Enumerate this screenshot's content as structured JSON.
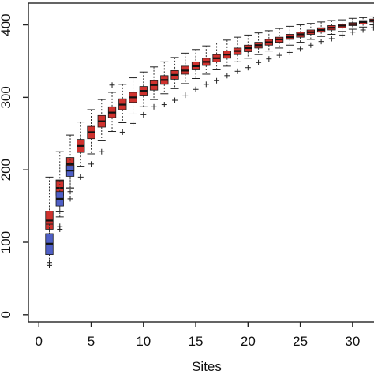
{
  "chart_data": {
    "type": "box",
    "title": "",
    "xlabel": "Sites",
    "ylabel": "",
    "xlim": [
      -1,
      32.5
    ],
    "ylim": [
      -10,
      430
    ],
    "x_ticks": [
      0,
      5,
      10,
      15,
      20,
      25,
      30
    ],
    "x_tick_labels": [
      "0",
      "5",
      "10",
      "15",
      "20",
      "25",
      "30"
    ],
    "y_ticks": [
      0,
      100,
      200,
      300,
      400
    ],
    "y_tick_labels": [
      "0",
      "100",
      "200",
      "300",
      "400"
    ],
    "grid": false,
    "legend": "none",
    "series": [
      {
        "color": "#d0322e",
        "boxes": [
          {
            "x": 1,
            "q1": 118,
            "median": 130,
            "q3": 143,
            "whisker_low": 95,
            "whisker_high": 190,
            "outliers": [
              72
            ]
          },
          {
            "x": 2,
            "q1": 165,
            "median": 175,
            "q3": 186,
            "whisker_low": 142,
            "whisker_high": 225,
            "outliers": [
              122
            ]
          },
          {
            "x": 3,
            "q1": 198,
            "median": 208,
            "q3": 217,
            "whisker_low": 175,
            "whisker_high": 248,
            "outliers": [
              160
            ]
          },
          {
            "x": 4,
            "q1": 224,
            "median": 233,
            "q3": 242,
            "whisker_low": 205,
            "whisker_high": 266,
            "outliers": [
              190
            ]
          },
          {
            "x": 5,
            "q1": 243,
            "median": 252,
            "q3": 260,
            "whisker_low": 222,
            "whisker_high": 283,
            "outliers": [
              208
            ]
          },
          {
            "x": 6,
            "q1": 259,
            "median": 267,
            "q3": 275,
            "whisker_low": 240,
            "whisker_high": 297,
            "outliers": [
              225
            ]
          },
          {
            "x": 7,
            "q1": 272,
            "median": 279,
            "q3": 287,
            "whisker_low": 253,
            "whisker_high": 307,
            "outliers": [
              317
            ]
          },
          {
            "x": 8,
            "q1": 283,
            "median": 290,
            "q3": 298,
            "whisker_low": 265,
            "whisker_high": 318,
            "outliers": [
              252
            ]
          },
          {
            "x": 9,
            "q1": 293,
            "median": 300,
            "q3": 307,
            "whisker_low": 277,
            "whisker_high": 327,
            "outliers": [
              264
            ]
          },
          {
            "x": 10,
            "q1": 302,
            "median": 309,
            "q3": 315,
            "whisker_low": 287,
            "whisker_high": 335,
            "outliers": [
              276
            ]
          },
          {
            "x": 11,
            "q1": 310,
            "median": 317,
            "q3": 323,
            "whisker_low": 297,
            "whisker_high": 342,
            "outliers": [
              287
            ]
          },
          {
            "x": 12,
            "q1": 318,
            "median": 324,
            "q3": 330,
            "whisker_low": 305,
            "whisker_high": 349,
            "outliers": [
              290
            ]
          },
          {
            "x": 13,
            "q1": 325,
            "median": 331,
            "q3": 337,
            "whisker_low": 312,
            "whisker_high": 355,
            "outliers": [
              296
            ]
          },
          {
            "x": 14,
            "q1": 332,
            "median": 337,
            "q3": 343,
            "whisker_low": 319,
            "whisker_high": 361,
            "outliers": [
              303
            ]
          },
          {
            "x": 15,
            "q1": 338,
            "median": 343,
            "q3": 349,
            "whisker_low": 326,
            "whisker_high": 366,
            "outliers": [
              311
            ]
          },
          {
            "x": 16,
            "q1": 344,
            "median": 349,
            "q3": 354,
            "whisker_low": 332,
            "whisker_high": 371,
            "outliers": [
              318
            ]
          },
          {
            "x": 17,
            "q1": 349,
            "median": 354,
            "q3": 359,
            "whisker_low": 338,
            "whisker_high": 375,
            "outliers": [
              323
            ]
          },
          {
            "x": 18,
            "q1": 354,
            "median": 359,
            "q3": 364,
            "whisker_low": 343,
            "whisker_high": 379,
            "outliers": [
              330
            ]
          },
          {
            "x": 19,
            "q1": 359,
            "median": 364,
            "q3": 368,
            "whisker_low": 349,
            "whisker_high": 383,
            "outliers": [
              336
            ]
          },
          {
            "x": 20,
            "q1": 363,
            "median": 368,
            "q3": 372,
            "whisker_low": 354,
            "whisker_high": 386,
            "outliers": [
              341
            ]
          },
          {
            "x": 21,
            "q1": 368,
            "median": 372,
            "q3": 376,
            "whisker_low": 359,
            "whisker_high": 389,
            "outliers": [
              348
            ]
          },
          {
            "x": 22,
            "q1": 372,
            "median": 376,
            "q3": 380,
            "whisker_low": 364,
            "whisker_high": 392,
            "outliers": [
              353
            ]
          },
          {
            "x": 23,
            "q1": 376,
            "median": 380,
            "q3": 383,
            "whisker_low": 368,
            "whisker_high": 395,
            "outliers": [
              358
            ]
          },
          {
            "x": 24,
            "q1": 380,
            "median": 383,
            "q3": 387,
            "whisker_low": 372,
            "whisker_high": 398,
            "outliers": [
              362
            ]
          },
          {
            "x": 25,
            "q1": 383,
            "median": 387,
            "q3": 390,
            "whisker_low": 376,
            "whisker_high": 400,
            "outliers": [
              367
            ]
          },
          {
            "x": 26,
            "q1": 387,
            "median": 390,
            "q3": 393,
            "whisker_low": 380,
            "whisker_high": 402,
            "outliers": [
              372
            ]
          },
          {
            "x": 27,
            "q1": 390,
            "median": 393,
            "q3": 396,
            "whisker_low": 384,
            "whisker_high": 404,
            "outliers": [
              377
            ]
          },
          {
            "x": 28,
            "q1": 393,
            "median": 396,
            "q3": 399,
            "whisker_low": 387,
            "whisker_high": 406,
            "outliers": [
              381
            ]
          },
          {
            "x": 29,
            "q1": 396,
            "median": 399,
            "q3": 401,
            "whisker_low": 391,
            "whisker_high": 407,
            "outliers": [
              386
            ]
          },
          {
            "x": 30,
            "q1": 399,
            "median": 401,
            "q3": 403,
            "whisker_low": 394,
            "whisker_high": 409,
            "outliers": [
              390
            ]
          },
          {
            "x": 31,
            "q1": 401,
            "median": 404,
            "q3": 406,
            "whisker_low": 397,
            "whisker_high": 410,
            "outliers": [
              393
            ]
          },
          {
            "x": 32,
            "q1": 404,
            "median": 406,
            "q3": 408,
            "whisker_low": 400,
            "whisker_high": 411,
            "outliers": [
              396
            ]
          }
        ]
      },
      {
        "color": "#4f5fc6",
        "boxes": [
          {
            "x": 1,
            "q1": 83,
            "median": 98,
            "q3": 112,
            "whisker_low": 70,
            "whisker_high": 125,
            "outliers": [
              68
            ]
          },
          {
            "x": 2,
            "q1": 150,
            "median": 160,
            "q3": 170,
            "whisker_low": 135,
            "whisker_high": 185,
            "outliers": [
              118
            ]
          },
          {
            "x": 3,
            "q1": 191,
            "median": 199,
            "q3": 206,
            "whisker_low": 175,
            "whisker_high": 215,
            "outliers": [
              170
            ]
          }
        ]
      }
    ]
  }
}
